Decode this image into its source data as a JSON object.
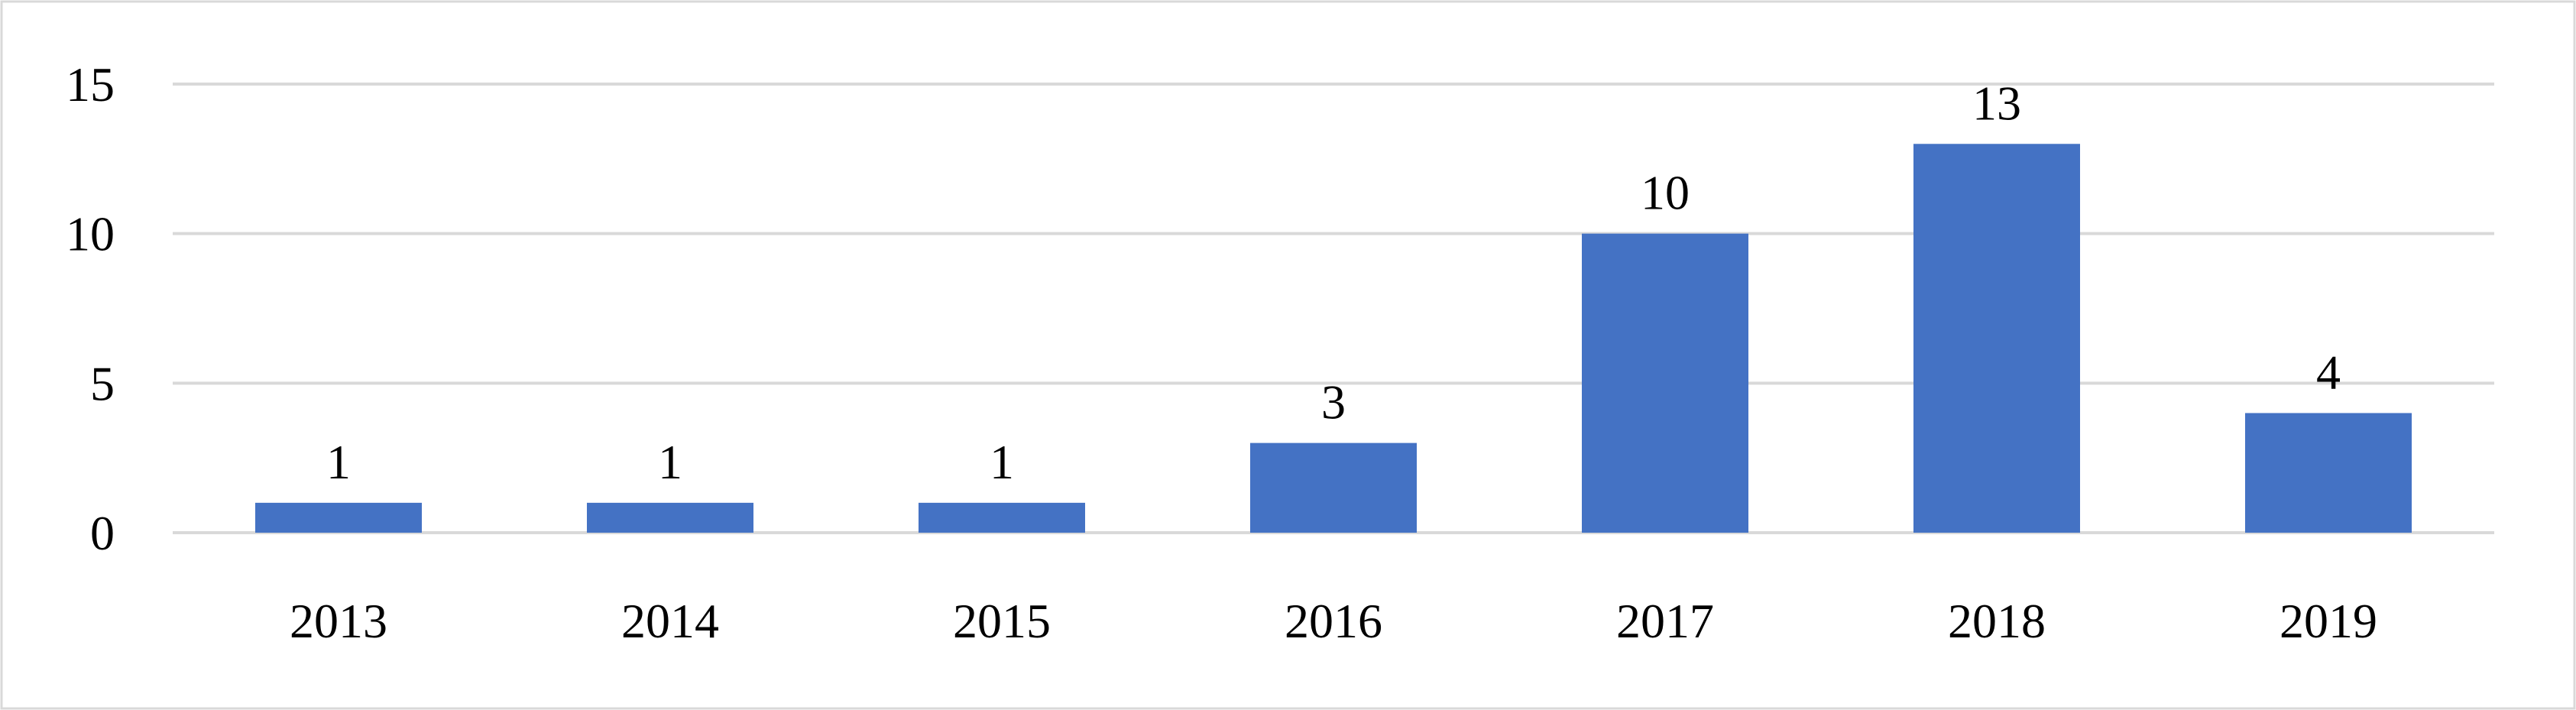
{
  "chart_data": {
    "type": "bar",
    "title": "",
    "xlabel": "",
    "ylabel": "",
    "categories": [
      "2013",
      "2014",
      "2015",
      "2016",
      "2017",
      "2018",
      "2019"
    ],
    "values": [
      1,
      1,
      1,
      3,
      10,
      13,
      4
    ],
    "data_labels": [
      "1",
      "1",
      "1",
      "3",
      "10",
      "13",
      "4"
    ],
    "ylim": [
      0,
      15
    ],
    "yticks": [
      0,
      5,
      10,
      15
    ],
    "ytick_labels": [
      "0",
      "5",
      "10",
      "15"
    ],
    "grid": true,
    "legend": "none",
    "colors": {
      "bar": "#4472c4",
      "grid": "#d9d9d9",
      "frame": "#d9d9d9",
      "text": "#000000"
    }
  }
}
